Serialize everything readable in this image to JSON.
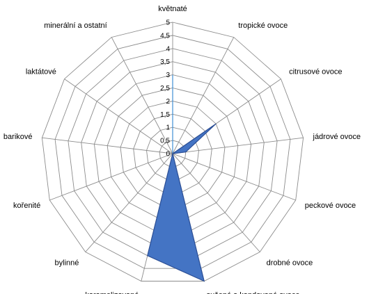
{
  "chart_data": {
    "type": "radar",
    "categories": [
      "květnaté",
      "tropické ovoce",
      "citrusové ovoce",
      "jádrové ovoce",
      "peckové ovoce",
      "drobné ovoce",
      "sušené a kandované ovoce",
      "karamelizované",
      "bylinné",
      "kořenité",
      "barikové",
      "laktátové",
      "minerální a ostatní"
    ],
    "ticks": [
      "0",
      "0,5",
      "1",
      "1,5",
      "2",
      "2,5",
      "3",
      "3,5",
      "4",
      "4,5",
      "5"
    ],
    "rmax": 5,
    "series": [
      {
        "values": [
          3,
          0,
          0,
          0,
          0,
          0,
          0,
          0,
          0,
          0,
          0,
          0,
          0
        ],
        "fill": "#87c7ff",
        "stroke": "#3f8fd6"
      },
      {
        "values": [
          0,
          0,
          2,
          0.5,
          0,
          0,
          5,
          4,
          0,
          0,
          0,
          0,
          0
        ],
        "fill": "#4474c4",
        "stroke": "#2c4f96"
      }
    ],
    "grid": true,
    "legend": "none"
  }
}
